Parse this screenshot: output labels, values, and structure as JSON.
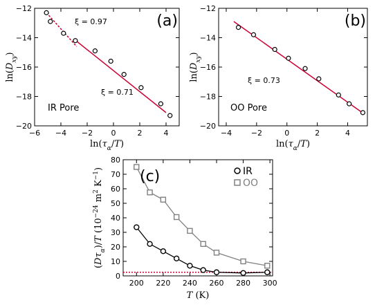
{
  "chart_data": [
    {
      "type": "scatter",
      "panel_label": "(a)",
      "ylabel": "ln(D_xy)",
      "xlabel": "ln(τ_α/T)",
      "xlim": [
        -6,
        5
      ],
      "ylim": [
        -20,
        -12
      ],
      "xticks": [
        "−6",
        "−4",
        "−2",
        "0",
        "2",
        "4"
      ],
      "yticks": [
        "−12",
        "−14",
        "−16",
        "−18",
        "−20"
      ],
      "points": [
        {
          "x": -5.1,
          "y": -12.3
        },
        {
          "x": -4.8,
          "y": -12.9
        },
        {
          "x": -3.8,
          "y": -13.7
        },
        {
          "x": -2.9,
          "y": -14.2
        },
        {
          "x": -1.4,
          "y": -14.9
        },
        {
          "x": -0.2,
          "y": -15.6
        },
        {
          "x": 0.8,
          "y": -16.5
        },
        {
          "x": 2.1,
          "y": -17.4
        },
        {
          "x": 3.6,
          "y": -18.5
        },
        {
          "x": 4.3,
          "y": -19.3
        }
      ],
      "fits": [
        {
          "label": "ξ = 0.97",
          "x": [
            -5.1,
            -2.8
          ],
          "y": [
            -12.3,
            -14.6
          ],
          "style": "dashed",
          "color": "#cc0033"
        },
        {
          "label": "ξ = 0.71",
          "x": [
            -3.0,
            4.0
          ],
          "y": [
            -14.1,
            -19.1
          ],
          "style": "solid",
          "color": "#cc0033"
        }
      ],
      "annotations": [
        "ξ = 0.97",
        "ξ = 0.71",
        "IR Pore"
      ]
    },
    {
      "type": "scatter",
      "panel_label": "(b)",
      "ylabel": "ln(D_xy)",
      "xlabel": "ln(τ_α/T)",
      "xlim": [
        -4.5,
        5.3
      ],
      "ylim": [
        -20,
        -12
      ],
      "xticks": [
        "−4",
        "−2",
        "0",
        "2",
        "4"
      ],
      "yticks": [
        "−12",
        "−14",
        "−16",
        "−18",
        "−20"
      ],
      "points": [
        {
          "x": -3.2,
          "y": -13.3
        },
        {
          "x": -2.2,
          "y": -13.8
        },
        {
          "x": -0.8,
          "y": -14.8
        },
        {
          "x": 0.1,
          "y": -15.4
        },
        {
          "x": 1.2,
          "y": -16.1
        },
        {
          "x": 2.1,
          "y": -16.8
        },
        {
          "x": 3.4,
          "y": -17.9
        },
        {
          "x": 4.1,
          "y": -18.5
        },
        {
          "x": 5.0,
          "y": -19.1
        }
      ],
      "fits": [
        {
          "label": "ξ = 0.73",
          "x": [
            -3.5,
            5.1
          ],
          "y": [
            -12.9,
            -19.2
          ],
          "style": "solid",
          "color": "#cc0033"
        }
      ],
      "annotations": [
        "ξ = 0.73",
        "OO Pore"
      ]
    },
    {
      "type": "line",
      "panel_label": "(c)",
      "ylabel": "(Dτ_α)/T (10^−24 m² K^−1)",
      "xlabel": "T (K)",
      "xlim": [
        190,
        302
      ],
      "ylim": [
        0,
        80
      ],
      "xticks": [
        "200",
        "220",
        "240",
        "260",
        "280",
        "300"
      ],
      "yticks": [
        "80",
        "70",
        "60",
        "50",
        "40",
        "30",
        "20",
        "10",
        "0"
      ],
      "series": [
        {
          "name": "IR",
          "marker": "circle",
          "color": "#000000",
          "x": [
            200,
            210,
            220,
            230,
            240,
            250,
            260,
            280,
            298
          ],
          "y": [
            33.5,
            22,
            17,
            12,
            7,
            4,
            2.5,
            2,
            2.5
          ]
        },
        {
          "name": "OO",
          "marker": "square",
          "color": "#808080",
          "x": [
            200,
            210,
            220,
            230,
            240,
            250,
            260,
            280,
            298
          ],
          "y": [
            75,
            57.5,
            52.5,
            40.5,
            31,
            22,
            16,
            10,
            7
          ]
        }
      ],
      "reference_line": {
        "y": 2.5,
        "style": "dotted",
        "color": "#cc0033"
      },
      "legend": "top-right"
    }
  ]
}
